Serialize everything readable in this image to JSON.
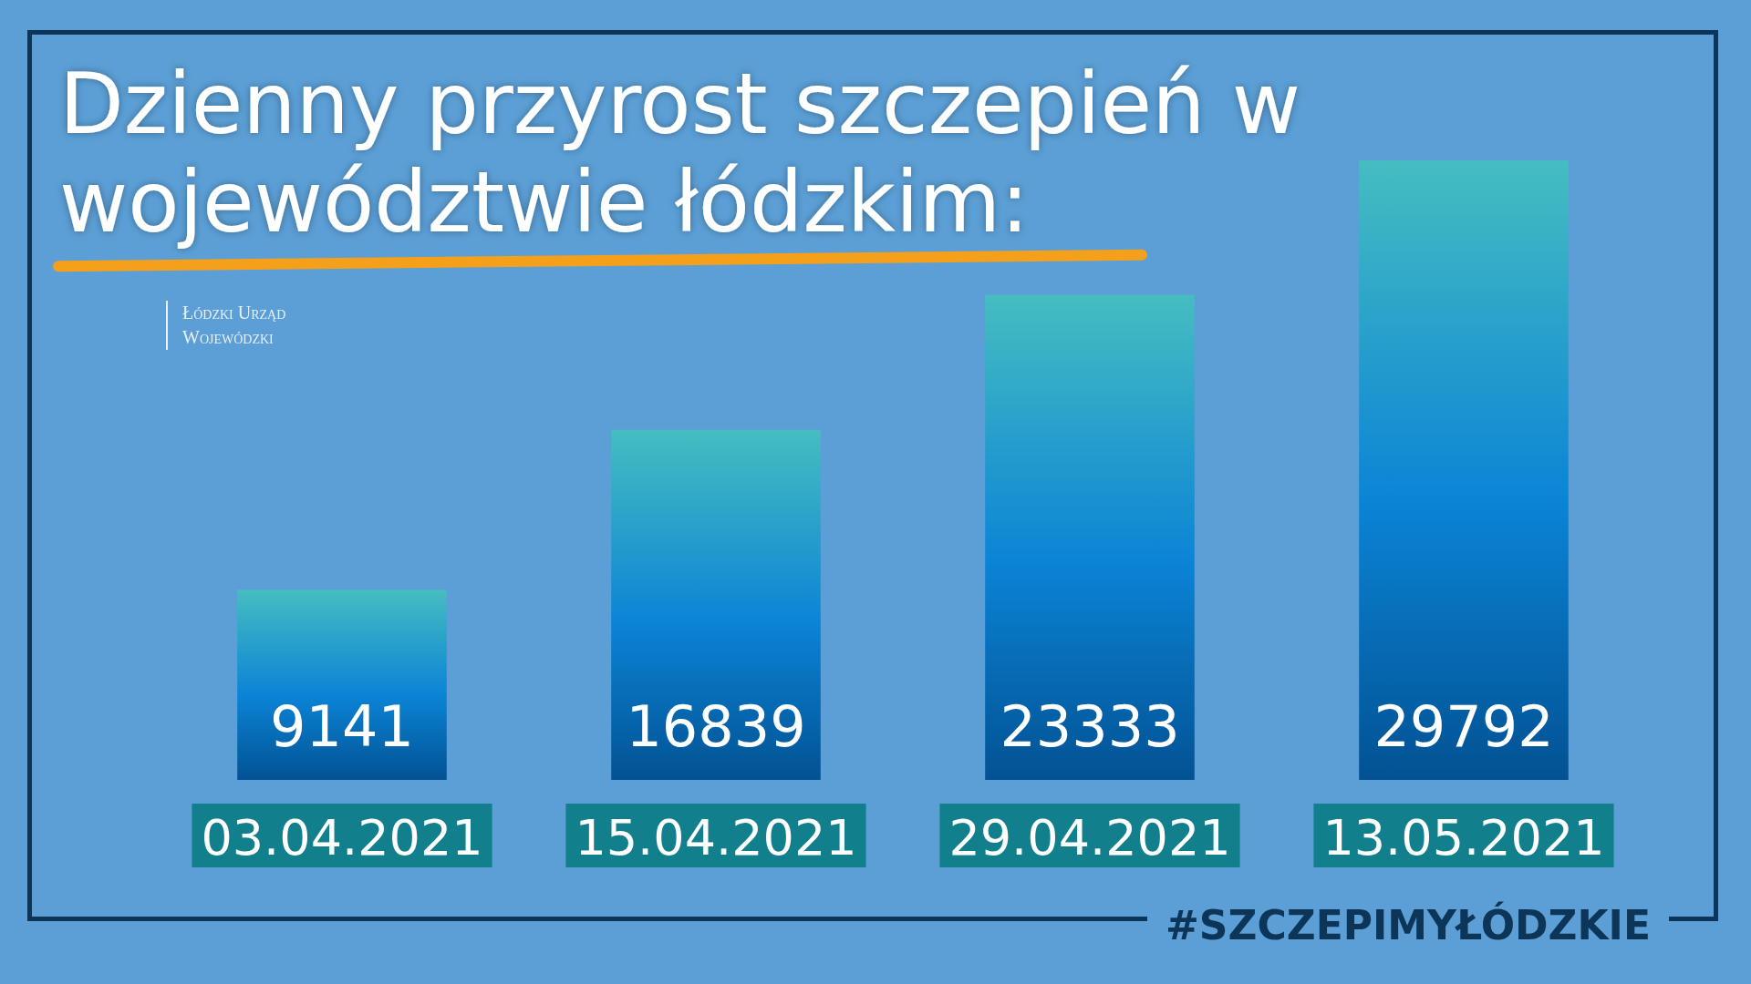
{
  "chart_data": {
    "type": "bar",
    "title": "Dzienny przyrost szczepień w województwie łódzkim:",
    "categories": [
      "03.04.2021",
      "15.04.2021",
      "29.04.2021",
      "13.05.2021"
    ],
    "values": [
      9141,
      16839,
      23333,
      29792
    ],
    "color": "#0b84d6",
    "data_labels": true,
    "annotations": [
      "Łódzki Urząd Wojewódzki",
      "#SZCZEPIMYŁÓDZKIE"
    ]
  }
}
